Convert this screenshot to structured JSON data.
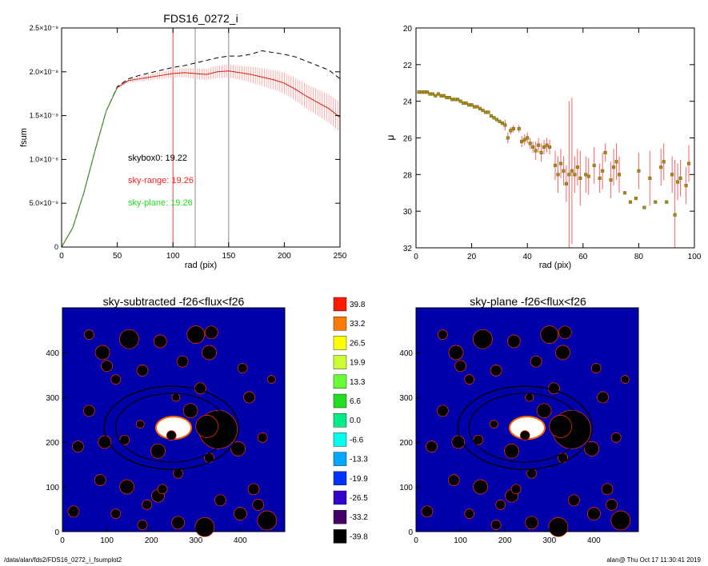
{
  "chart_data": [
    {
      "type": "line",
      "title": "FDS16_0272_i",
      "xlabel": "rad (pix)",
      "ylabel": "fsum",
      "xlim": [
        0,
        250
      ],
      "ylim": [
        0,
        2.5e-08
      ],
      "xticks": [
        "0",
        "50",
        "100",
        "150",
        "200",
        "250"
      ],
      "yticks": [
        "0",
        "5.0×10⁻⁹",
        "1.0×10⁻⁸",
        "1.5×10⁻⁸",
        "2.0×10⁻⁸",
        "2.5×10⁻⁸"
      ],
      "vlines": [
        {
          "x": 100,
          "color": "#ff3b30"
        },
        {
          "x": 120,
          "color": "#888888"
        },
        {
          "x": 150,
          "color": "#888888"
        }
      ],
      "annotations": [
        {
          "text": "skybox0: 19.22",
          "color": "#000000"
        },
        {
          "text": "sky-range: 19.26",
          "color": "#ff2020"
        },
        {
          "text": "sky-plane: 19.26",
          "color": "#20e020"
        }
      ],
      "series": [
        {
          "style": "dashed",
          "color": "#000000",
          "x": [
            0,
            10,
            20,
            30,
            40,
            50,
            60,
            70,
            80,
            90,
            100,
            110,
            120,
            130,
            140,
            150,
            160,
            170,
            180,
            190,
            200,
            210,
            220,
            230,
            240,
            250
          ],
          "y": [
            0,
            2.2e-09,
            6.2e-09,
            1.1e-08,
            1.55e-08,
            1.83e-08,
            1.92e-08,
            1.96e-08,
            1.99e-08,
            2.02e-08,
            2.05e-08,
            2.07e-08,
            2.1e-08,
            2.13e-08,
            2.16e-08,
            2.18e-08,
            2.18e-08,
            2.2e-08,
            2.24e-08,
            2.22e-08,
            2.2e-08,
            2.17e-08,
            2.12e-08,
            2.07e-08,
            2.02e-08,
            1.92e-08
          ]
        },
        {
          "style": "solid",
          "color": "#d02010",
          "x": [
            0,
            10,
            20,
            30,
            40,
            50,
            60,
            70,
            80,
            90,
            100,
            110,
            120,
            130,
            140,
            150,
            160,
            170,
            180,
            190,
            200,
            210,
            220,
            230,
            240,
            250
          ],
          "y": [
            0,
            2.2e-09,
            6.2e-09,
            1.1e-08,
            1.55e-08,
            1.82e-08,
            1.9e-08,
            1.92e-08,
            1.94e-08,
            1.96e-08,
            1.98e-08,
            1.99e-08,
            1.98e-08,
            1.97e-08,
            2e-08,
            2.01e-08,
            1.99e-08,
            1.97e-08,
            1.94e-08,
            1.91e-08,
            1.87e-08,
            1.8e-08,
            1.72e-08,
            1.65e-08,
            1.58e-08,
            1.48e-08
          ],
          "err": [
            0,
            0,
            0,
            0,
            0,
            1e-10,
            2e-10,
            3e-10,
            3.5e-10,
            4e-10,
            4.5e-10,
            5e-10,
            6e-10,
            6.5e-10,
            7e-10,
            7.5e-10,
            8e-10,
            9e-10,
            1e-09,
            1.1e-09,
            1.2e-09,
            1.3e-09,
            1.4e-09,
            1.5e-09,
            1.6e-09,
            1.7e-09
          ]
        }
      ]
    },
    {
      "type": "scatter",
      "xlabel": "rad (pix)",
      "ylabel": "μ",
      "xlim": [
        0,
        100
      ],
      "ylim": [
        32,
        20
      ],
      "xticks": [
        "0",
        "20",
        "40",
        "60",
        "80",
        "100"
      ],
      "yticks": [
        "20",
        "22",
        "24",
        "26",
        "28",
        "30",
        "32"
      ],
      "x": [
        1,
        2,
        3,
        4,
        5,
        6,
        7,
        8,
        9,
        10,
        11,
        12,
        13,
        14,
        15,
        16,
        17,
        18,
        19,
        20,
        21,
        22,
        23,
        24,
        25,
        26,
        27,
        28,
        29,
        30,
        31,
        32,
        33,
        34,
        35,
        37,
        38,
        39,
        40,
        41,
        42,
        43,
        44,
        45,
        46,
        47,
        48,
        50,
        51,
        52,
        53,
        54,
        55,
        56,
        57,
        58,
        59,
        61,
        62,
        64,
        66,
        67,
        68,
        70,
        71,
        72,
        73,
        75,
        77,
        79,
        80,
        82,
        84,
        86,
        88,
        89,
        90,
        92,
        93,
        94,
        95,
        97,
        98
      ],
      "y": [
        23.5,
        23.5,
        23.5,
        23.5,
        23.6,
        23.6,
        23.7,
        23.6,
        23.7,
        23.7,
        23.8,
        23.8,
        23.9,
        23.9,
        23.9,
        24.0,
        24.1,
        24.1,
        24.2,
        24.2,
        24.3,
        24.3,
        24.4,
        24.5,
        24.6,
        24.6,
        24.8,
        24.9,
        25.0,
        25.1,
        25.2,
        25.3,
        26.0,
        25.6,
        25.5,
        25.5,
        26.2,
        26.1,
        26.0,
        26.3,
        26.5,
        26.7,
        26.4,
        26.8,
        26.5,
        26.4,
        26.5,
        27.5,
        28.0,
        27.4,
        27.8,
        28.5,
        28.0,
        27.8,
        28.0,
        27.6,
        28.2,
        28.0,
        28.1,
        27.5,
        28.2,
        27.8,
        26.8,
        28.3,
        27.6,
        27.3,
        28.0,
        29.0,
        29.5,
        29.3,
        27.8,
        29.8,
        28.2,
        29.5,
        27.6,
        27.3,
        29.5,
        28.0,
        30.2,
        28.4,
        28.2,
        28.6,
        27.4
      ],
      "err": [
        0.05,
        0.05,
        0.05,
        0.05,
        0.05,
        0.05,
        0.05,
        0.05,
        0.05,
        0.05,
        0.05,
        0.05,
        0.05,
        0.05,
        0.05,
        0.05,
        0.05,
        0.05,
        0.05,
        0.05,
        0.05,
        0.05,
        0.05,
        0.05,
        0.05,
        0.05,
        0.05,
        0.05,
        0.05,
        0.05,
        0.1,
        0.3,
        0.3,
        0.2,
        0.2,
        0.2,
        0.3,
        0.3,
        0.3,
        0.3,
        0.3,
        0.5,
        0.4,
        0.5,
        0.4,
        0.4,
        0.4,
        0.8,
        1.0,
        0.8,
        0.8,
        1.0,
        4.0,
        4.0,
        1.0,
        1.0,
        1.5,
        1.0,
        1.0,
        1.0,
        0.8,
        1.0,
        0.5,
        1.0,
        1.0,
        1.0,
        1.0,
        0,
        0,
        0,
        1.0,
        0,
        1.5,
        0,
        1.0,
        1.0,
        0,
        1.0,
        3.0,
        1.0,
        1.0,
        1.0,
        1.0
      ]
    },
    {
      "type": "heatmap",
      "title": "sky-subtracted -f26<flux<f26",
      "xlim": [
        0,
        500
      ],
      "ylim": [
        0,
        500
      ],
      "xticks": [
        "0",
        "100",
        "200",
        "300",
        "400"
      ],
      "yticks": [
        "0",
        "100",
        "200",
        "300",
        "400"
      ]
    },
    {
      "type": "heatmap",
      "title": "sky-plane -f26<flux<f26",
      "xlim": [
        0,
        500
      ],
      "ylim": [
        0,
        500
      ],
      "xticks": [
        "0",
        "100",
        "200",
        "300",
        "400"
      ],
      "yticks": [
        "0",
        "100",
        "200",
        "300",
        "400"
      ]
    }
  ],
  "colorbar": [
    {
      "label": "39.8",
      "color": "#ff1a00"
    },
    {
      "label": "33.2",
      "color": "#ff7a00"
    },
    {
      "label": "26.5",
      "color": "#ffff00"
    },
    {
      "label": "19.9",
      "color": "#ccff33"
    },
    {
      "label": "13.3",
      "color": "#66ff33"
    },
    {
      "label": "6.6",
      "color": "#22dd22"
    },
    {
      "label": "0.0",
      "color": "#00ee88"
    },
    {
      "label": "-6.6",
      "color": "#00ffee"
    },
    {
      "label": "-13.3",
      "color": "#00a8ff"
    },
    {
      "label": "-19.9",
      "color": "#0033ff"
    },
    {
      "label": "-26.5",
      "color": "#3300cc"
    },
    {
      "label": "-33.2",
      "color": "#440066"
    },
    {
      "label": "-39.8",
      "color": "#000000"
    }
  ],
  "footer": {
    "path": "/data/alan/fds2/FDS16_0272_i_fsumplot2",
    "stamp": "alan@  Thu Oct 17 11:30:41 2019"
  }
}
